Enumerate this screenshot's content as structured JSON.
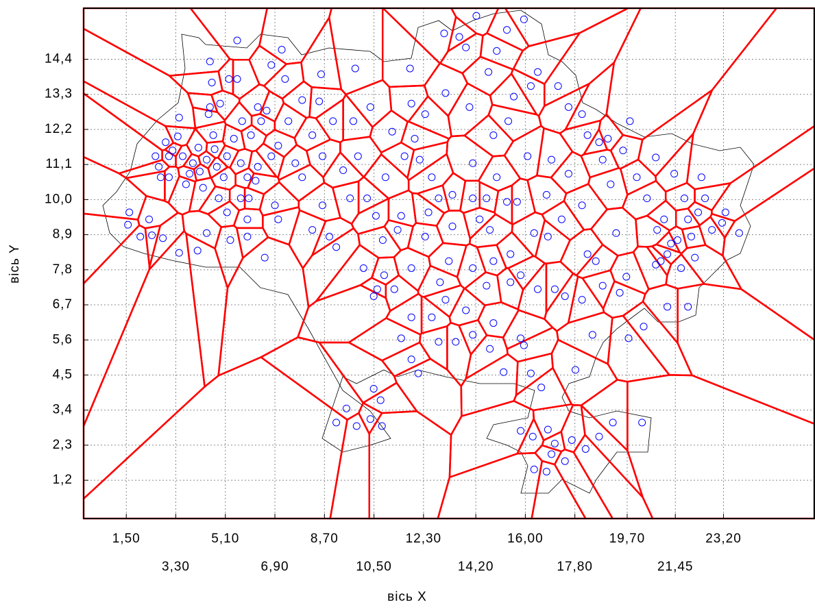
{
  "chart_data": {
    "type": "scatter",
    "x_label": "вісь X",
    "y_label": "вісь Y",
    "color": "#0000ff",
    "voronoi_color": "#ff0000",
    "grid": true,
    "xlim": [
      -0.05,
      26.5
    ],
    "ylim": [
      0,
      16
    ],
    "xticks": [
      {
        "value": 1.5,
        "label": "1,50"
      },
      {
        "value": 3.3,
        "label": "3,30"
      },
      {
        "value": 5.1,
        "label": "5,10"
      },
      {
        "value": 6.9,
        "label": "6,90"
      },
      {
        "value": 8.7,
        "label": "8,70"
      },
      {
        "value": 10.5,
        "label": "10,50"
      },
      {
        "value": 12.3,
        "label": "12,30"
      },
      {
        "value": 14.2,
        "label": "14,20"
      },
      {
        "value": 16,
        "label": "16,00"
      },
      {
        "value": 17.8,
        "label": "17,80"
      },
      {
        "value": 19.7,
        "label": "19,70"
      },
      {
        "value": 21.45,
        "label": "21,45"
      },
      {
        "value": 23.2,
        "label": "23,20"
      }
    ],
    "yticks": [
      {
        "value": 1.2,
        "label": "1,2"
      },
      {
        "value": 2.3,
        "label": "2,3"
      },
      {
        "value": 3.4,
        "label": "3,4"
      },
      {
        "value": 4.5,
        "label": "4,5"
      },
      {
        "value": 5.6,
        "label": "5,6"
      },
      {
        "value": 6.7,
        "label": "6,7"
      },
      {
        "value": 7.8,
        "label": "7,8"
      },
      {
        "value": 8.9,
        "label": "8,9"
      },
      {
        "value": 10,
        "label": "10,0"
      },
      {
        "value": 11.1,
        "label": "11,1"
      },
      {
        "value": 12.2,
        "label": "12,2"
      },
      {
        "value": 13.3,
        "label": "13,3"
      },
      {
        "value": 14.4,
        "label": "14,4"
      }
    ],
    "x": [
      1.56,
      1.61,
      2.01,
      2.33,
      2.43,
      2.83,
      2.56,
      2.68,
      2.75,
      2.93,
      3.05,
      3.05,
      3.18,
      3.37,
      3.42,
      3.55,
      3.67,
      3.8,
      3.92,
      4.12,
      4.17,
      4.29,
      4.42,
      4.49,
      4.54,
      4.54,
      4.61,
      4.66,
      4.71,
      4.79,
      4.86,
      4.91,
      5.04,
      5.16,
      5.23,
      5.53,
      5.53,
      5.41,
      5.66,
      5.71,
      5.9,
      5.9,
      5.95,
      6.03,
      6.2,
      6.28,
      6.4,
      6.6,
      6.77,
      6.9,
      7.02,
      7.15,
      7.27,
      6.77,
      7.02,
      6.53,
      5.9,
      5.28,
      4.42,
      4.09,
      3.42,
      5.66,
      5.16,
      6.28,
      7.39,
      7.64,
      7.89,
      8.26,
      7.89,
      8.26,
      8.63,
      8.58,
      8.51,
      8.63,
      9.01,
      9.13,
      8.88,
      9.38,
      9.63,
      9.82,
      9.75,
      9.92,
      10.12,
      10.25,
      10.37,
      10.57,
      10.62,
      10.82,
      10.92,
      11.24,
      11.16,
      11.49,
      11.61,
      11.81,
      11.86,
      11.98,
      12.16,
      12.36,
      12.48,
      12.6,
      12.85,
      13.05,
      13.1,
      13.35,
      13.22,
      13.6,
      13.84,
      13.97,
      14.09,
      14.22,
      14.34,
      14.59,
      14.66,
      14.84,
      14.96,
      15.33,
      15.38,
      15.46,
      15.58,
      15.7,
      15.95,
      16.08,
      16.2,
      16.32,
      16.45,
      16.77,
      16.95,
      17.19,
      17.32,
      17.57,
      18.06,
      18.26,
      18.68,
      18.81,
      19.0,
      19.1,
      19.3,
      19.55,
      19.8,
      20.05,
      20.42,
      20.74,
      20.79,
      21.16,
      21.41,
      21.78,
      21.91,
      22.28,
      22.53,
      22.78,
      23.15,
      23.27,
      23.77,
      22.4,
      21.04,
      21.53,
      22.03,
      21.66,
      21.29,
      20.92,
      22.16,
      20.74,
      10.49,
      10.87,
      11.86,
      12.9,
      13.1,
      13.84,
      14.09,
      14.59,
      14.84,
      15.83,
      16.45,
      17.07,
      17.44,
      18.06,
      18.81,
      19.43,
      19.67,
      18.56,
      18.26,
      11.86,
      12.6,
      11.49,
      11.86,
      12.11,
      12.85,
      13.47,
      14.09,
      14.71,
      14.84,
      15.21,
      15.83,
      15.95,
      16.2,
      16.58,
      17.82,
      18.44,
      19.75,
      20.3,
      21.16,
      21.91,
      10.49,
      10.74,
      9.5,
      9.13,
      9.87,
      10.37,
      10.79,
      15.83,
      16.27,
      16.82,
      17.07,
      17.69,
      18.19,
      18.68,
      19.18,
      20.24,
      16.32,
      16.77,
      16.95,
      17.44,
      17.57,
      18.06,
      14.96,
      15.33,
      14.09,
      13.35,
      15.46,
      14.71,
      16.82,
      12.36,
      11.36
    ],
    "values": [
      9.21,
      9.6,
      8.84,
      9.38,
      8.88,
      8.79,
      11.36,
      11.03,
      10.7,
      11.8,
      11.36,
      10.7,
      11.54,
      11.98,
      12.57,
      11.36,
      10.48,
      10.81,
      11.14,
      11.63,
      10.88,
      10.37,
      11.25,
      12.68,
      14.33,
      12.9,
      13.67,
      12.02,
      11.58,
      11.03,
      10.04,
      13.01,
      10.7,
      11.36,
      13.78,
      14.99,
      13.78,
      11.91,
      11.14,
      12.46,
      10.7,
      9.38,
      10.04,
      12.02,
      10.59,
      11.03,
      12.46,
      12.79,
      14.22,
      9.82,
      11.69,
      14.7,
      13.78,
      11.36,
      9.38,
      8.18,
      8.84,
      8.73,
      8.95,
      8.4,
      8.33,
      10.04,
      9.6,
      12.9,
      12.46,
      11.14,
      13.12,
      12.02,
      10.7,
      9.05,
      9.82,
      13.93,
      13.08,
      11.36,
      12.46,
      8.51,
      8.84,
      10.92,
      10.04,
      14.11,
      12.46,
      11.36,
      7.85,
      10.04,
      12.9,
      9.49,
      7.19,
      8.73,
      10.7,
      7.19,
      12.13,
      9.49,
      11.36,
      14.11,
      13.01,
      11.91,
      11.25,
      12.68,
      9.6,
      10.7,
      10.04,
      15.21,
      13.34,
      9.16,
      8.07,
      15.1,
      14.77,
      12.9,
      11.14,
      15.76,
      9.38,
      10.04,
      14.0,
      12.02,
      14.66,
      15.32,
      12.46,
      7.41,
      13.23,
      9.93,
      15.65,
      11.36,
      13.56,
      8.95,
      14.0,
      10.15,
      11.25,
      13.56,
      9.38,
      10.81,
      9.82,
      12.02,
      11.8,
      11.25,
      11.91,
      10.48,
      8.95,
      11.54,
      12.46,
      10.7,
      10.04,
      11.32,
      9.05,
      8.29,
      10.81,
      10.04,
      9.38,
      9.6,
      10.04,
      9.05,
      9.27,
      9.6,
      8.95,
      10.7,
      9.38,
      8.73,
      8.84,
      7.85,
      8.62,
      8.07,
      8.18,
      7.96,
      6.97,
      7.63,
      7.85,
      7.41,
      6.86,
      6.53,
      7.85,
      7.3,
      8.07,
      7.63,
      7.19,
      7.19,
      6.97,
      6.86,
      7.3,
      7.08,
      7.58,
      8.07,
      8.29,
      6.31,
      6.31,
      5.65,
      4.99,
      4.55,
      5.54,
      5.54,
      5.76,
      5.32,
      6.13,
      4.59,
      5.65,
      5.43,
      4.55,
      4.11,
      4.66,
      5.76,
      5.65,
      6.02,
      6.64,
      6.64,
      4.07,
      3.71,
      3.45,
      3.01,
      2.9,
      3.12,
      2.9,
      2.75,
      2.57,
      2.79,
      2.35,
      2.46,
      2.18,
      2.57,
      3.01,
      3.01,
      1.54,
      1.47,
      2.02,
      1.8,
      12.9,
      12.68,
      10.7,
      9.93,
      10.04,
      10.15,
      8.29,
      9.05,
      8.84,
      8.84,
      9.05
    ]
  }
}
